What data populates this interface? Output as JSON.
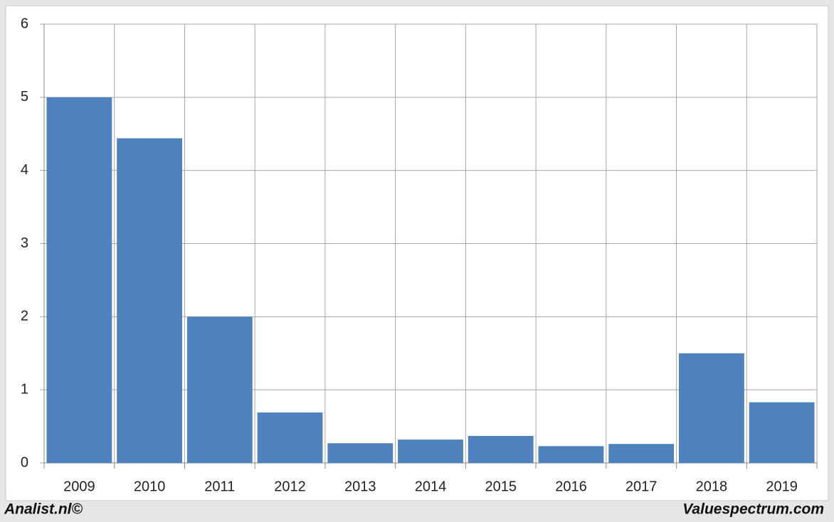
{
  "chart_data": {
    "type": "bar",
    "categories": [
      "2009",
      "2010",
      "2011",
      "2012",
      "2013",
      "2014",
      "2015",
      "2016",
      "2017",
      "2018",
      "2019"
    ],
    "values": [
      5.0,
      4.44,
      2.0,
      0.69,
      0.27,
      0.32,
      0.37,
      0.23,
      0.26,
      1.5,
      0.83
    ],
    "color": "#4f81bd",
    "ylim": [
      0,
      6
    ],
    "yticks": [
      0,
      1,
      2,
      3,
      4,
      5,
      6
    ],
    "grid": true
  },
  "footer": {
    "left": "Analist.nl©",
    "right": "Valuespectrum.com"
  }
}
